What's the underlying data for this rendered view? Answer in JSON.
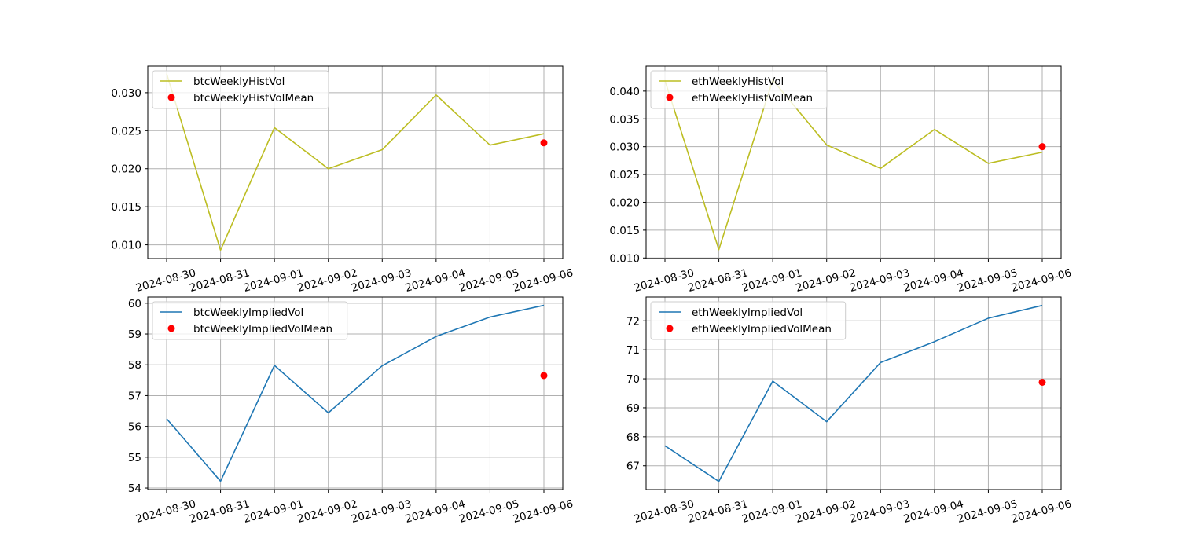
{
  "chart_data": [
    {
      "type": "line",
      "x": [
        "2024-08-30",
        "2024-08-31",
        "2024-09-01",
        "2024-09-02",
        "2024-09-03",
        "2024-09-04",
        "2024-09-05",
        "2024-09-06"
      ],
      "series": [
        {
          "name": "btcWeeklyHistVol",
          "kind": "line",
          "color": "#bcbd22",
          "values": [
            0.0325,
            0.0093,
            0.0254,
            0.02,
            0.0225,
            0.0297,
            0.0231,
            0.0246
          ]
        },
        {
          "name": "btcWeeklyHistVolMean",
          "kind": "scatter",
          "color": "#ff0000",
          "points": [
            {
              "x": "2024-09-06",
              "y": 0.0234
            }
          ]
        }
      ],
      "yticks": [
        0.01,
        0.015,
        0.02,
        0.025,
        0.03
      ],
      "ytick_labels": [
        "0.010",
        "0.015",
        "0.020",
        "0.025",
        "0.030"
      ],
      "ylim": [
        0.0082,
        0.0335
      ],
      "grid": true,
      "legend": "upper left"
    },
    {
      "type": "line",
      "x": [
        "2024-08-30",
        "2024-08-31",
        "2024-09-01",
        "2024-09-02",
        "2024-09-03",
        "2024-09-04",
        "2024-09-05",
        "2024-09-06"
      ],
      "series": [
        {
          "name": "ethWeeklyHistVol",
          "kind": "line",
          "color": "#bcbd22",
          "values": [
            0.0419,
            0.0115,
            0.042,
            0.0303,
            0.0261,
            0.0331,
            0.027,
            0.029
          ]
        },
        {
          "name": "ethWeeklyHistVolMean",
          "kind": "scatter",
          "color": "#ff0000",
          "points": [
            {
              "x": "2024-09-06",
              "y": 0.03
            }
          ]
        }
      ],
      "yticks": [
        0.01,
        0.015,
        0.02,
        0.025,
        0.03,
        0.035,
        0.04
      ],
      "ytick_labels": [
        "0.010",
        "0.015",
        "0.020",
        "0.025",
        "0.030",
        "0.035",
        "0.040"
      ],
      "ylim": [
        0.0099,
        0.0445
      ],
      "grid": true,
      "legend": "upper left"
    },
    {
      "type": "line",
      "x": [
        "2024-08-30",
        "2024-08-31",
        "2024-09-01",
        "2024-09-02",
        "2024-09-03",
        "2024-09-04",
        "2024-09-05",
        "2024-09-06"
      ],
      "series": [
        {
          "name": "btcWeeklyImpliedVol",
          "kind": "line",
          "color": "#1f77b4",
          "values": [
            56.25,
            54.22,
            57.98,
            56.44,
            57.97,
            58.92,
            59.55,
            59.93
          ]
        },
        {
          "name": "btcWeeklyImpliedVolMean",
          "kind": "scatter",
          "color": "#ff0000",
          "points": [
            {
              "x": "2024-09-06",
              "y": 57.65
            }
          ]
        }
      ],
      "yticks": [
        54,
        55,
        56,
        57,
        58,
        59,
        60
      ],
      "ytick_labels": [
        "54",
        "55",
        "56",
        "57",
        "58",
        "59",
        "60"
      ],
      "ylim": [
        53.95,
        60.2
      ],
      "grid": true,
      "legend": "upper left"
    },
    {
      "type": "line",
      "x": [
        "2024-08-30",
        "2024-08-31",
        "2024-09-01",
        "2024-09-02",
        "2024-09-03",
        "2024-09-04",
        "2024-09-05",
        "2024-09-06"
      ],
      "series": [
        {
          "name": "ethWeeklyImpliedVol",
          "kind": "line",
          "color": "#1f77b4",
          "values": [
            67.69,
            66.46,
            69.92,
            68.52,
            70.56,
            71.28,
            72.09,
            72.53
          ]
        },
        {
          "name": "ethWeeklyImpliedVolMean",
          "kind": "scatter",
          "color": "#ff0000",
          "points": [
            {
              "x": "2024-09-06",
              "y": 69.88
            }
          ]
        }
      ],
      "yticks": [
        67,
        68,
        69,
        70,
        71,
        72
      ],
      "ytick_labels": [
        "67",
        "68",
        "69",
        "70",
        "71",
        "72"
      ],
      "ylim": [
        66.18,
        72.82
      ],
      "grid": true,
      "legend": "upper left"
    }
  ]
}
